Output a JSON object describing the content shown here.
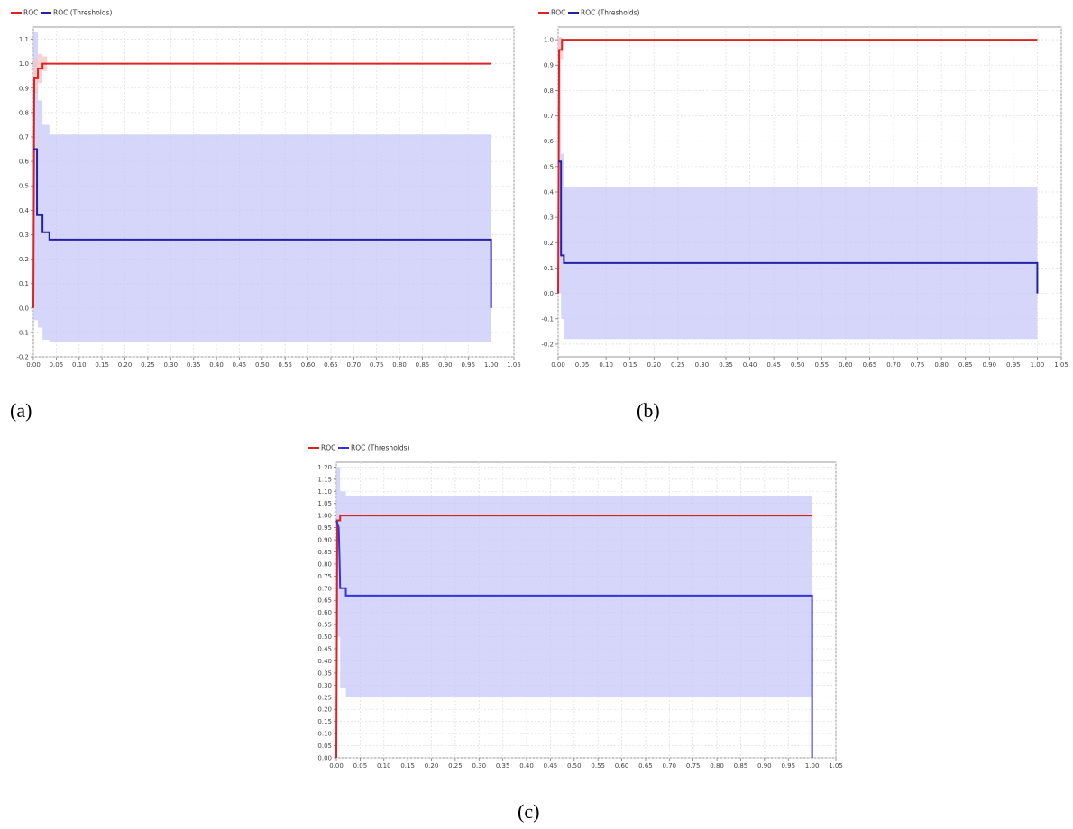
{
  "captions": {
    "a": "(a)",
    "b": "(b)",
    "c": "(c)"
  },
  "legend": {
    "roc_label": "ROC",
    "thresholds_label": "ROC (Thresholds)"
  },
  "colors": {
    "roc": "#dd2222",
    "thresholds": "#2222aa",
    "thresholds_c": "#3333dd",
    "band": "#c8c8f8",
    "roc_band": "#f4c4c4",
    "grid": "#e2e2e2"
  },
  "chart_data": [
    {
      "id": "a",
      "type": "line",
      "xlim": [
        0,
        1.05
      ],
      "ylim": [
        -0.2,
        1.15
      ],
      "x_ticks": [
        "0.00",
        "0.05",
        "0.10",
        "0.15",
        "0.20",
        "0.25",
        "0.30",
        "0.35",
        "0.40",
        "0.45",
        "0.50",
        "0.55",
        "0.60",
        "0.65",
        "0.70",
        "0.75",
        "0.80",
        "0.85",
        "0.90",
        "0.95",
        "1.00",
        "1.05"
      ],
      "y_ticks": [
        "-0.2",
        "-0.1",
        "0.0",
        "0.1",
        "0.2",
        "0.3",
        "0.4",
        "0.5",
        "0.6",
        "0.7",
        "0.8",
        "0.9",
        "1.0",
        "1.1"
      ],
      "series": [
        {
          "name": "ROC",
          "points": [
            [
              0,
              0
            ],
            [
              0.002,
              0.94
            ],
            [
              0.01,
              0.94
            ],
            [
              0.01,
              0.98
            ],
            [
              0.02,
              0.98
            ],
            [
              0.02,
              1.0
            ],
            [
              1.0,
              1.0
            ]
          ]
        },
        {
          "name": "ROC (Thresholds)",
          "points": [
            [
              0,
              0.65
            ],
            [
              0.008,
              0.65
            ],
            [
              0.008,
              0.38
            ],
            [
              0.02,
              0.38
            ],
            [
              0.02,
              0.31
            ],
            [
              0.035,
              0.31
            ],
            [
              0.035,
              0.28
            ],
            [
              1.0,
              0.28
            ],
            [
              1.0,
              0.0
            ]
          ]
        }
      ],
      "roc_band": [
        [
          0,
          0.88,
          1.02
        ],
        [
          0.01,
          0.92,
          1.04
        ],
        [
          0.02,
          0.97,
          1.03
        ],
        [
          0.03,
          0.99,
          1.01
        ]
      ],
      "threshold_band": [
        [
          0,
          -0.05,
          1.13
        ],
        [
          0.01,
          -0.08,
          0.85
        ],
        [
          0.02,
          -0.13,
          0.75
        ],
        [
          0.035,
          -0.14,
          0.71
        ],
        [
          1.0,
          -0.14,
          0.71
        ]
      ]
    },
    {
      "id": "b",
      "type": "line",
      "xlim": [
        0,
        1.05
      ],
      "ylim": [
        -0.25,
        1.05
      ],
      "x_ticks": [
        "0.00",
        "0.05",
        "0.10",
        "0.15",
        "0.20",
        "0.25",
        "0.30",
        "0.35",
        "0.40",
        "0.45",
        "0.50",
        "0.55",
        "0.60",
        "0.65",
        "0.70",
        "0.75",
        "0.80",
        "0.85",
        "0.90",
        "0.95",
        "1.00",
        "1.05"
      ],
      "y_ticks": [
        "-0.2",
        "-0.1",
        "0.0",
        "0.1",
        "0.2",
        "0.3",
        "0.4",
        "0.5",
        "0.6",
        "0.7",
        "0.8",
        "0.9",
        "1.0"
      ],
      "series": [
        {
          "name": "ROC",
          "points": [
            [
              0,
              0
            ],
            [
              0.002,
              0.96
            ],
            [
              0.008,
              0.96
            ],
            [
              0.008,
              1.0
            ],
            [
              1.0,
              1.0
            ]
          ]
        },
        {
          "name": "ROC (Thresholds)",
          "points": [
            [
              0,
              0.52
            ],
            [
              0.006,
              0.52
            ],
            [
              0.006,
              0.15
            ],
            [
              0.012,
              0.15
            ],
            [
              0.012,
              0.12
            ],
            [
              1.0,
              0.12
            ],
            [
              1.0,
              0.0
            ]
          ]
        }
      ],
      "roc_band": [
        [
          0,
          0.92,
          1.01
        ],
        [
          0.01,
          0.98,
          1.01
        ]
      ],
      "threshold_band": [
        [
          0,
          0.0,
          1.01
        ],
        [
          0.006,
          -0.1,
          0.55
        ],
        [
          0.012,
          -0.18,
          0.42
        ],
        [
          1.0,
          -0.18,
          0.42
        ]
      ]
    },
    {
      "id": "c",
      "type": "line",
      "xlim": [
        0,
        1.05
      ],
      "ylim": [
        0,
        1.22
      ],
      "x_ticks": [
        "0.00",
        "0.05",
        "0.10",
        "0.15",
        "0.20",
        "0.25",
        "0.30",
        "0.35",
        "0.40",
        "0.45",
        "0.50",
        "0.55",
        "0.60",
        "0.65",
        "0.70",
        "0.75",
        "0.80",
        "0.85",
        "0.90",
        "0.95",
        "1.00",
        "1.05"
      ],
      "y_ticks": [
        "0.00",
        "0.05",
        "0.10",
        "0.15",
        "0.20",
        "0.25",
        "0.30",
        "0.35",
        "0.40",
        "0.45",
        "0.50",
        "0.55",
        "0.60",
        "0.65",
        "0.70",
        "0.75",
        "0.80",
        "0.85",
        "0.90",
        "0.95",
        "1.00",
        "1.05",
        "1.10",
        "1.15",
        "1.20"
      ],
      "series": [
        {
          "name": "ROC",
          "points": [
            [
              0,
              0
            ],
            [
              0.002,
              0.98
            ],
            [
              0.008,
              0.98
            ],
            [
              0.008,
              1.0
            ],
            [
              1.0,
              1.0
            ]
          ]
        },
        {
          "name": "ROC (Thresholds)",
          "points": [
            [
              0,
              0.98
            ],
            [
              0.005,
              0.95
            ],
            [
              0.007,
              0.8
            ],
            [
              0.008,
              0.7
            ],
            [
              0.02,
              0.7
            ],
            [
              0.02,
              0.67
            ],
            [
              1.0,
              0.67
            ],
            [
              1.0,
              0.0
            ]
          ]
        }
      ],
      "roc_band": [],
      "threshold_band": [
        [
          0,
          0.5,
          1.2
        ],
        [
          0.008,
          0.29,
          1.1
        ],
        [
          0.02,
          0.25,
          1.08
        ],
        [
          1.0,
          0.25,
          1.08
        ]
      ]
    }
  ]
}
